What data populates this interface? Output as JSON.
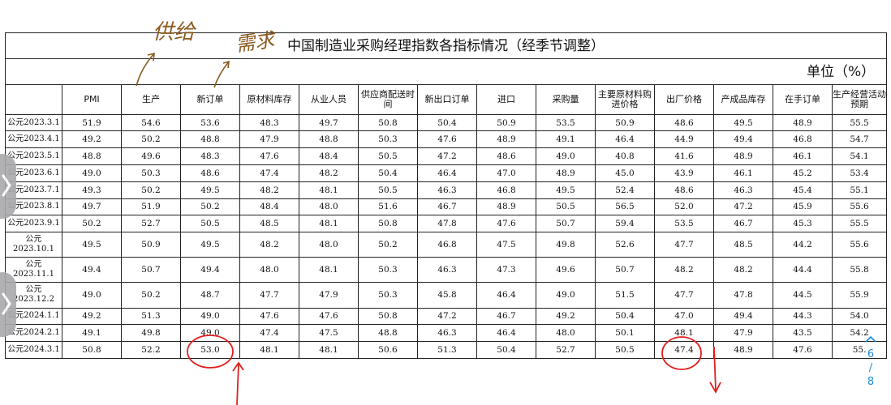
{
  "table": {
    "title": "中国制造业采购经理指数各指标情况（经季节调整）",
    "unit": "单位（%）",
    "headers": [
      "",
      "PMI",
      "生产",
      "新订单",
      "原材料库存",
      "从业人员",
      "供应商配送时间",
      "新出口订单",
      "进口",
      "采购量",
      "主要原材料购进价格",
      "出厂价格",
      "产成品库存",
      "在手订单",
      "生产经营活动预期"
    ],
    "rows": [
      {
        "date": "公元2023.3.1",
        "values": [
          "51.9",
          "54.6",
          "53.6",
          "48.3",
          "49.7",
          "50.8",
          "50.4",
          "50.9",
          "53.5",
          "50.9",
          "48.6",
          "49.5",
          "48.9",
          "55.5"
        ]
      },
      {
        "date": "公元2023.4.1",
        "values": [
          "49.2",
          "50.2",
          "48.8",
          "47.9",
          "48.8",
          "50.3",
          "47.6",
          "48.9",
          "49.1",
          "46.4",
          "44.9",
          "49.4",
          "46.8",
          "54.7"
        ]
      },
      {
        "date": "公元2023.5.1",
        "values": [
          "48.8",
          "49.6",
          "48.3",
          "47.6",
          "48.4",
          "50.5",
          "47.2",
          "48.6",
          "49.0",
          "40.8",
          "41.6",
          "48.9",
          "46.1",
          "54.1"
        ]
      },
      {
        "date": "公元2023.6.1",
        "values": [
          "49.0",
          "50.3",
          "48.6",
          "47.4",
          "48.2",
          "50.4",
          "46.4",
          "47.0",
          "48.9",
          "45.0",
          "43.9",
          "46.1",
          "45.2",
          "53.4"
        ]
      },
      {
        "date": "公元2023.7.1",
        "values": [
          "49.3",
          "50.2",
          "49.5",
          "48.2",
          "48.1",
          "50.5",
          "46.3",
          "46.8",
          "49.5",
          "52.4",
          "48.6",
          "46.3",
          "45.4",
          "55.1"
        ]
      },
      {
        "date": "公元2023.8.1",
        "values": [
          "49.7",
          "51.9",
          "50.2",
          "48.4",
          "48.0",
          "51.6",
          "46.7",
          "48.9",
          "50.5",
          "56.5",
          "52.0",
          "47.2",
          "45.9",
          "55.6"
        ]
      },
      {
        "date": "公元2023.9.1",
        "values": [
          "50.2",
          "52.7",
          "50.5",
          "48.5",
          "48.1",
          "50.8",
          "47.8",
          "47.6",
          "50.7",
          "59.4",
          "53.5",
          "46.7",
          "45.3",
          "55.5"
        ]
      },
      {
        "date": "公元 2023.10.1",
        "values": [
          "49.5",
          "50.9",
          "49.5",
          "48.2",
          "48.0",
          "50.2",
          "46.8",
          "47.5",
          "49.8",
          "52.6",
          "47.7",
          "48.5",
          "44.2",
          "55.6"
        ]
      },
      {
        "date": "公元 2023.11.1",
        "values": [
          "49.4",
          "50.7",
          "49.4",
          "48.0",
          "48.1",
          "50.3",
          "46.3",
          "47.3",
          "49.6",
          "50.7",
          "48.2",
          "48.2",
          "44.4",
          "55.8"
        ]
      },
      {
        "date": "公元 2023.12.2",
        "values": [
          "49.0",
          "50.2",
          "48.7",
          "47.7",
          "47.9",
          "50.3",
          "45.8",
          "46.4",
          "49.0",
          "51.5",
          "47.7",
          "47.8",
          "44.5",
          "55.9"
        ]
      },
      {
        "date": "公元2024.1.1",
        "values": [
          "49.2",
          "51.3",
          "49.0",
          "47.6",
          "47.6",
          "50.8",
          "47.2",
          "46.7",
          "49.2",
          "50.4",
          "47.0",
          "49.4",
          "44.3",
          "54.0"
        ]
      },
      {
        "date": "公元2024.2.1",
        "values": [
          "49.1",
          "49.8",
          "49.0",
          "47.4",
          "47.5",
          "48.8",
          "46.3",
          "46.4",
          "48.0",
          "50.1",
          "48.1",
          "47.9",
          "43.5",
          "54.2"
        ]
      },
      {
        "date": "公元2024.3.1",
        "values": [
          "50.8",
          "52.2",
          "53.0",
          "48.1",
          "48.1",
          "50.6",
          "51.3",
          "50.4",
          "52.7",
          "50.5",
          "47.4",
          "48.9",
          "47.6",
          "55."
        ]
      }
    ]
  },
  "annotations": {
    "handwriting_1": "供给",
    "handwriting_2": "需求",
    "color": "#e02020",
    "ink_color": "#8a5a1e"
  },
  "page_indicator": {
    "current": "6",
    "separator": "/",
    "total": "8"
  },
  "icons": {
    "chevron_up": "chevron-up-icon",
    "side_chevron": "chevron-right-icon"
  }
}
